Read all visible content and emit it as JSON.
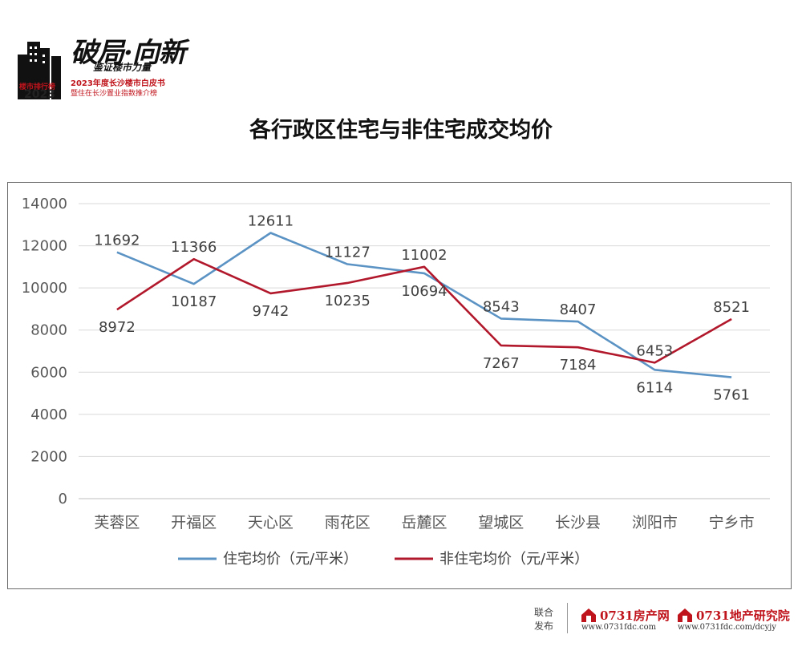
{
  "header": {
    "logo_building_text": "楼市排行榜",
    "logo_year": "2023",
    "slogan_main": "破局·向新",
    "slogan_sub": "鉴证楼市力量",
    "line1": "2023年度长沙楼市白皮书",
    "line2": "暨住在长沙置业指数推介榜"
  },
  "chart_data": {
    "type": "line",
    "title": "各行政区住宅与非住宅成交均价",
    "categories": [
      "芙蓉区",
      "开福区",
      "天心区",
      "雨花区",
      "岳麓区",
      "望城区",
      "长沙县",
      "浏阳市",
      "宁乡市"
    ],
    "series": [
      {
        "name": "住宅均价（元/平米）",
        "color": "#5b93c4",
        "values": [
          11692,
          10187,
          12611,
          11127,
          10694,
          8543,
          8407,
          6114,
          5761
        ]
      },
      {
        "name": "非住宅均价（元/平米）",
        "color": "#b2182b",
        "values": [
          8972,
          11366,
          9742,
          10235,
          11002,
          7267,
          7184,
          6453,
          8521
        ]
      }
    ],
    "ylim": [
      0,
      14000
    ],
    "yticks": [
      0,
      2000,
      4000,
      6000,
      8000,
      10000,
      12000,
      14000
    ],
    "grid": true,
    "legend": "bottom"
  },
  "footer": {
    "label1": "联合",
    "label2": "发布",
    "brand1": "0731房产网",
    "brand1_url": "www.0731fdc.com",
    "brand2": "0731地产研究院",
    "brand2_url": "www.0731fdc.com/dcyjy"
  }
}
